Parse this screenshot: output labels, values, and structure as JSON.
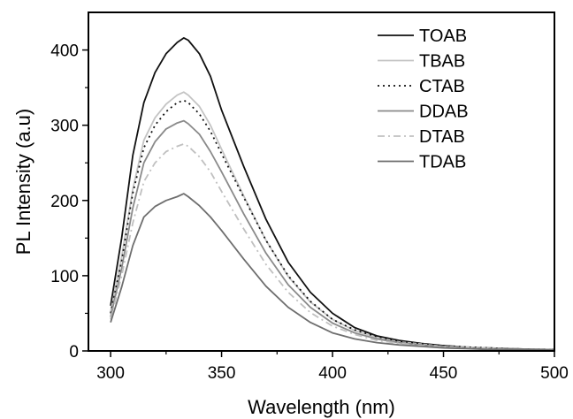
{
  "chart_data": {
    "type": "line",
    "title": "",
    "xlabel": "Wavelength (nm)",
    "ylabel": "PL Intensity (a.u)",
    "xlim": [
      290,
      500
    ],
    "ylim": [
      0,
      450
    ],
    "xticks": [
      300,
      350,
      400,
      450,
      500
    ],
    "yticks": [
      0,
      100,
      200,
      300,
      400
    ],
    "grid": false,
    "legend_position": "top-right",
    "x": [
      300,
      305,
      310,
      315,
      320,
      325,
      330,
      333,
      335,
      340,
      345,
      350,
      360,
      370,
      380,
      390,
      400,
      410,
      420,
      430,
      440,
      450,
      460,
      470,
      480,
      490,
      500
    ],
    "series": [
      {
        "name": "TOAB",
        "color": "#111111",
        "dash": "",
        "values": [
          60,
          150,
          260,
          330,
          370,
          395,
          410,
          416,
          413,
          395,
          365,
          320,
          245,
          175,
          118,
          78,
          50,
          31,
          20,
          14,
          10,
          7,
          5,
          4,
          3,
          2,
          2
        ]
      },
      {
        "name": "TBAB",
        "color": "#c4c4c4",
        "dash": "",
        "values": [
          52,
          125,
          215,
          280,
          310,
          328,
          340,
          344,
          340,
          325,
          300,
          268,
          206,
          147,
          99,
          65,
          42,
          27,
          18,
          12,
          9,
          6,
          5,
          4,
          3,
          2,
          2
        ]
      },
      {
        "name": "CTAB",
        "color": "#111111",
        "dash": "2,4",
        "values": [
          50,
          120,
          210,
          270,
          300,
          318,
          330,
          333,
          330,
          315,
          292,
          262,
          204,
          147,
          100,
          66,
          42,
          28,
          19,
          13,
          9,
          7,
          5,
          4,
          3,
          2,
          2
        ]
      },
      {
        "name": "DDAB",
        "color": "#8a8a8a",
        "dash": "",
        "values": [
          45,
          110,
          190,
          250,
          278,
          295,
          303,
          306,
          302,
          288,
          265,
          238,
          182,
          130,
          88,
          58,
          37,
          24,
          16,
          11,
          8,
          6,
          4,
          3,
          3,
          2,
          2
        ]
      },
      {
        "name": "DTAB",
        "color": "#c0c0c0",
        "dash": "8,4,2,4",
        "values": [
          42,
          100,
          170,
          225,
          250,
          265,
          272,
          275,
          272,
          258,
          238,
          212,
          162,
          115,
          78,
          51,
          33,
          22,
          14,
          10,
          7,
          5,
          4,
          3,
          2,
          2,
          2
        ]
      },
      {
        "name": "TDAB",
        "color": "#6e6e6e",
        "dash": "",
        "values": [
          38,
          85,
          140,
          178,
          192,
          200,
          205,
          209,
          205,
          193,
          178,
          160,
          122,
          86,
          58,
          38,
          24,
          16,
          11,
          8,
          6,
          4,
          3,
          2,
          2,
          2,
          1
        ]
      }
    ]
  }
}
